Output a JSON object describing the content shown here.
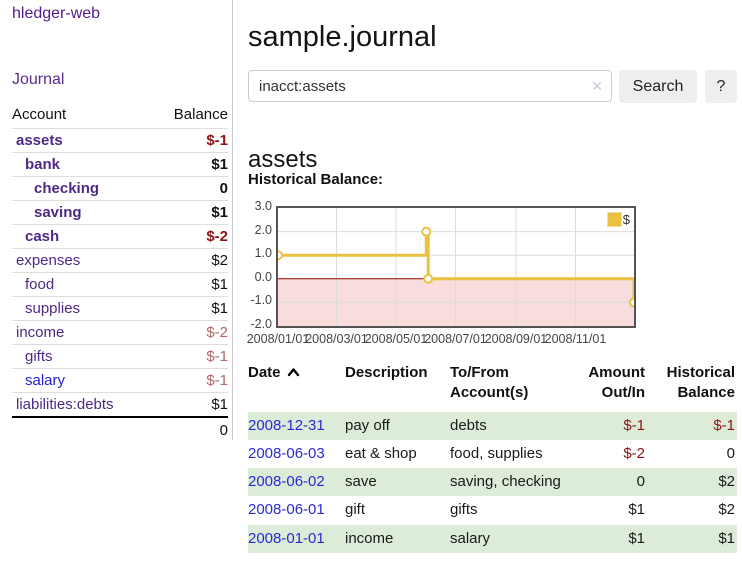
{
  "app": {
    "brand": "hledger-web",
    "nav_journal": "Journal"
  },
  "sidebar": {
    "headers": {
      "account": "Account",
      "balance": "Balance"
    },
    "accounts": [
      {
        "name": "assets",
        "indent": 0,
        "bold": true,
        "balance": "$-1",
        "negative": true,
        "blue": false
      },
      {
        "name": "bank",
        "indent": 1,
        "bold": true,
        "balance": "$1",
        "negative": false,
        "blue": false
      },
      {
        "name": "checking",
        "indent": 2,
        "bold": true,
        "balance": "0",
        "negative": false,
        "blue": false
      },
      {
        "name": "saving",
        "indent": 2,
        "bold": true,
        "balance": "$1",
        "negative": false,
        "blue": false
      },
      {
        "name": "cash",
        "indent": 1,
        "bold": true,
        "balance": "$-2",
        "negative": true,
        "blue": false
      },
      {
        "name": "expenses",
        "indent": 0,
        "bold": false,
        "balance": "$2",
        "negative": false,
        "blue": false
      },
      {
        "name": "food",
        "indent": 1,
        "bold": false,
        "balance": "$1",
        "negative": false,
        "blue": false
      },
      {
        "name": "supplies",
        "indent": 1,
        "bold": false,
        "balance": "$1",
        "negative": false,
        "blue": false
      },
      {
        "name": "income",
        "indent": 0,
        "bold": false,
        "balance": "$-2",
        "negative": true,
        "blue": false
      },
      {
        "name": "gifts",
        "indent": 1,
        "bold": false,
        "balance": "$-1",
        "negative": true,
        "blue": false
      },
      {
        "name": "salary",
        "indent": 1,
        "bold": false,
        "balance": "$-1",
        "negative": true,
        "blue": true
      },
      {
        "name": "liabilities:debts",
        "indent": 0,
        "bold": false,
        "balance": "$1",
        "negative": false,
        "blue": false
      }
    ],
    "total": "0"
  },
  "header": {
    "title": "sample.journal"
  },
  "search": {
    "value": "inacct:assets",
    "clear_glyph": "✕",
    "button_label": "Search",
    "help_label": "?"
  },
  "main": {
    "account_heading": "assets",
    "chart_label": "Historical Balance:"
  },
  "chart_data": {
    "type": "line",
    "style": "step",
    "title": "Historical Balance",
    "x_range": [
      "2008-01-01",
      "2008-12-31"
    ],
    "ylim": [
      -2,
      3
    ],
    "grid": true,
    "legend": {
      "label": "$",
      "position": "top-right"
    },
    "series": [
      {
        "name": "$",
        "color": "#e8c240",
        "points": [
          {
            "date": "2008-01-01",
            "value": 1
          },
          {
            "date": "2008-06-01",
            "value": 2
          },
          {
            "date": "2008-06-03",
            "value": 0
          },
          {
            "date": "2008-12-31",
            "value": -1
          }
        ]
      }
    ],
    "y_ticks": [
      {
        "v": 3,
        "label": "3.0"
      },
      {
        "v": 2,
        "label": "2.0"
      },
      {
        "v": 1,
        "label": "1.0"
      },
      {
        "v": 0,
        "label": "0.0"
      },
      {
        "v": -1,
        "label": "-1.0"
      },
      {
        "v": -2,
        "label": "-2.0"
      }
    ],
    "x_ticks": [
      {
        "date": "2008-01-01",
        "label": "2008/01/01"
      },
      {
        "date": "2008-03-01",
        "label": "2008/03/01"
      },
      {
        "date": "2008-05-01",
        "label": "2008/05/01"
      },
      {
        "date": "2008-07-01",
        "label": "2008/07/01"
      },
      {
        "date": "2008-09-01",
        "label": "2008/09/01"
      },
      {
        "date": "2008-11-01",
        "label": "2008/11/01"
      }
    ],
    "negative_region_color": "#f9dcdc",
    "zero_line_color": "#8b0000",
    "gridline_color": "#dcdcdc",
    "border_color": "#545454"
  },
  "transactions": {
    "headers": {
      "date": "Date",
      "description": "Description",
      "accounts_line1": "To/From",
      "accounts_line2": "Account(s)",
      "amount_line1": "Amount",
      "amount_line2": "Out/In",
      "balance_line1": "Historical",
      "balance_line2": "Balance"
    },
    "rows": [
      {
        "date": "2008-12-31",
        "description": "pay off",
        "accounts": "debts",
        "amount": "$-1",
        "amount_negative": true,
        "balance": "$-1",
        "balance_negative": true,
        "green": true
      },
      {
        "date": "2008-06-03",
        "description": "eat & shop",
        "accounts": "food, supplies",
        "amount": "$-2",
        "amount_negative": true,
        "balance": "0",
        "balance_negative": false,
        "green": false
      },
      {
        "date": "2008-06-02",
        "description": "save",
        "accounts": "saving, checking",
        "amount": "0",
        "amount_negative": false,
        "balance": "$2",
        "balance_negative": false,
        "green": true
      },
      {
        "date": "2008-06-01",
        "description": "gift",
        "accounts": "gifts",
        "amount": "$1",
        "amount_negative": false,
        "balance": "$2",
        "balance_negative": false,
        "green": false
      },
      {
        "date": "2008-01-01",
        "description": "income",
        "accounts": "salary",
        "amount": "$1",
        "amount_negative": false,
        "balance": "$1",
        "balance_negative": false,
        "green": true
      }
    ]
  },
  "colors": {
    "accent_purple": "#4e2a84",
    "link_blue": "#2a2ad0",
    "negative_dark": "#8b1515",
    "negative_light": "#b06666",
    "row_green": "#dcecd9",
    "series_gold": "#e8c240"
  }
}
